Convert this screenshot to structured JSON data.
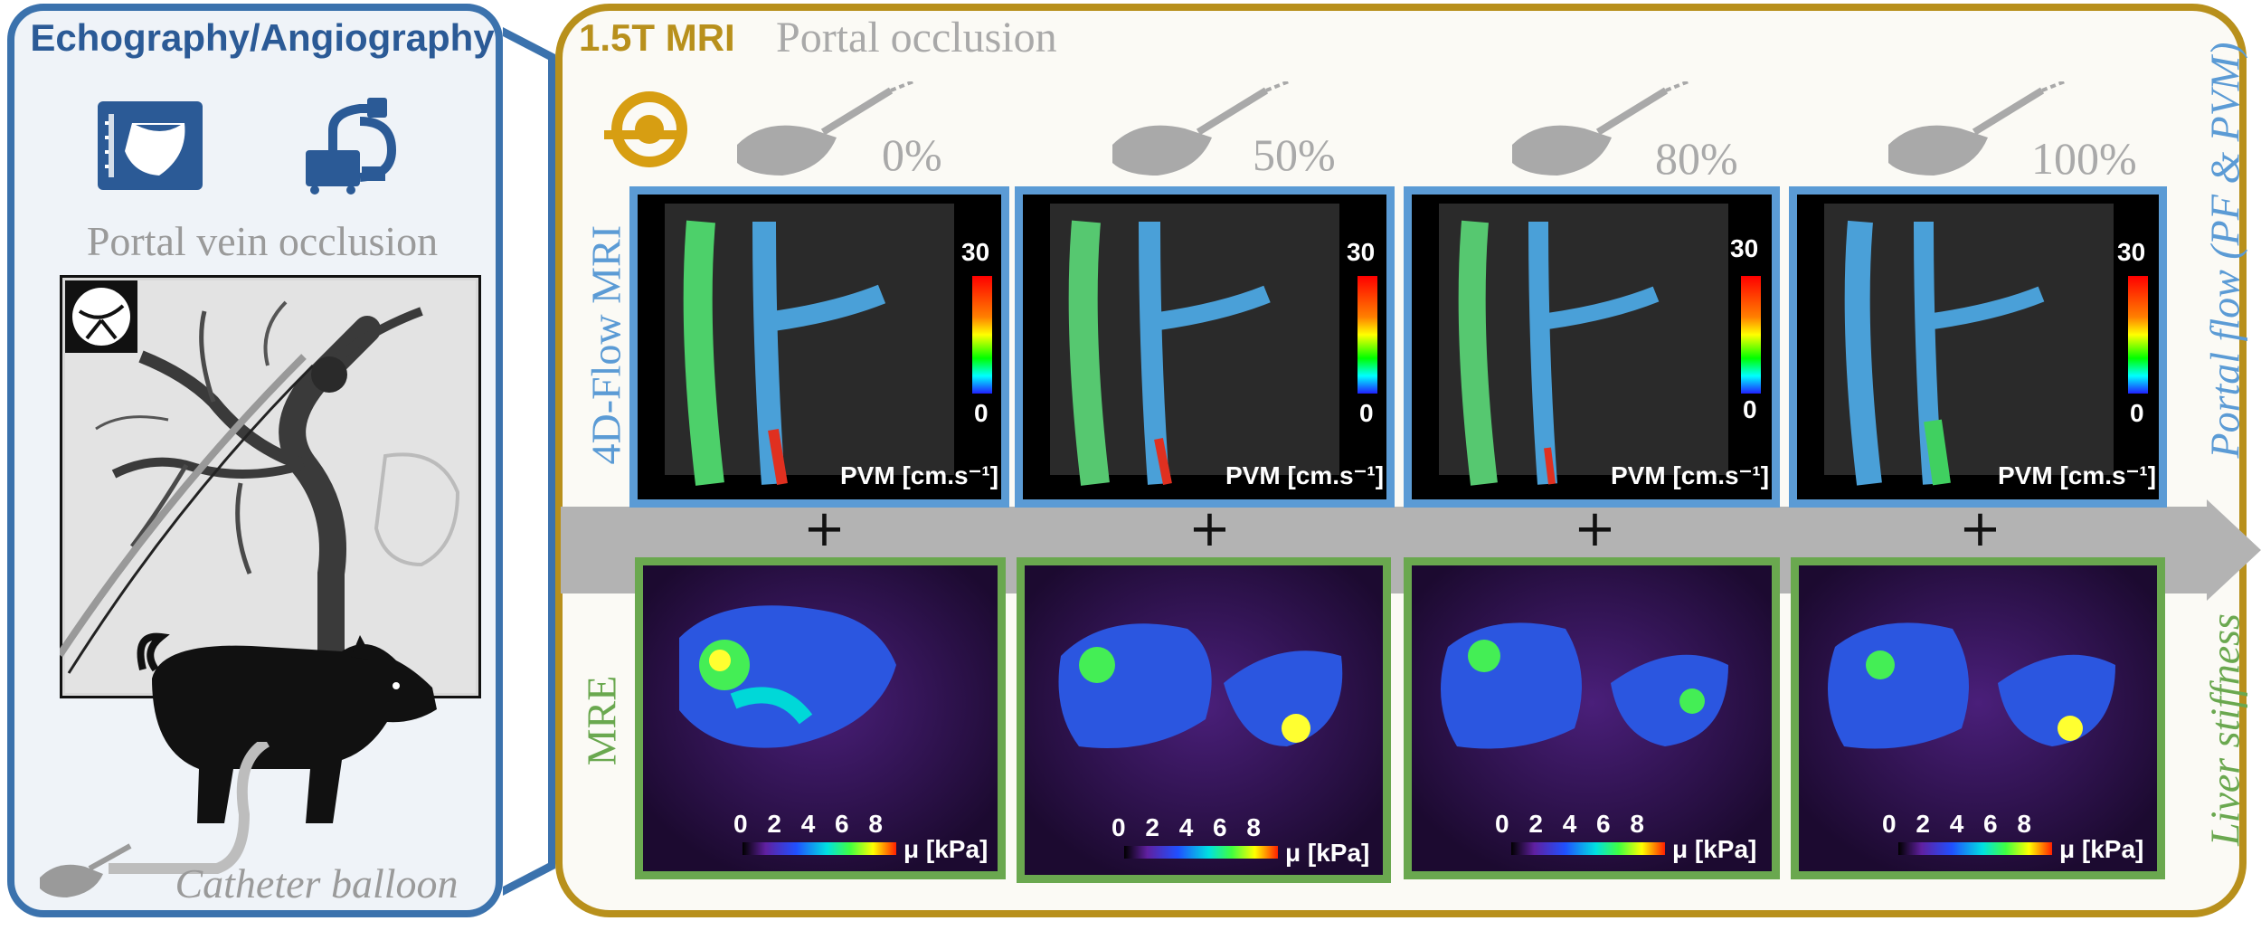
{
  "left_panel": {
    "title": "Echography/Angiography",
    "subtitle": "Portal vein occlusion",
    "catheter_label": "Catheter balloon",
    "icons": [
      "ultrasound-icon",
      "c-arm-icon",
      "liver-vessel-icon",
      "pig-icon",
      "catheter-hand-icon"
    ]
  },
  "right_panel": {
    "scanner_label": "1.5T MRI",
    "occlusion_label": "Portal  occlusion",
    "row_label_flow": "4D-Flow MRI",
    "row_label_mre": "MRE",
    "side_label_flow": "Portal flow (PF & PVM)",
    "side_label_mre": "Liver stiffness",
    "plus_sign": "+",
    "columns": [
      {
        "percent": "0%",
        "scale_max": "30",
        "scale_min": "0",
        "pvm_unit": "PVM [cm.s⁻¹]",
        "kpa_ticks": "0 2 4 6 8",
        "kpa_unit": "μ [kPa]"
      },
      {
        "percent": "50%",
        "scale_max": "30",
        "scale_min": "0",
        "pvm_unit": "PVM [cm.s⁻¹]",
        "kpa_ticks": "0 2 4 6 8",
        "kpa_unit": "μ [kPa]"
      },
      {
        "percent": "80%",
        "scale_max": "30",
        "scale_min": "0",
        "pvm_unit": "PVM [cm.s⁻¹]",
        "kpa_ticks": "0 2 4 6 8",
        "kpa_unit": "μ [kPa]"
      },
      {
        "percent": "100%",
        "scale_max": "30",
        "scale_min": "0",
        "pvm_unit": "PVM [cm.s⁻¹]",
        "kpa_ticks": "0 2 4 6 8",
        "kpa_unit": "μ [kPa]"
      }
    ]
  },
  "colors": {
    "left_border": "#3b72ad",
    "right_border": "#b8901c",
    "flow_border": "#5b9bd5",
    "mre_border": "#6aa84f",
    "arrow": "#b3b3b3"
  }
}
